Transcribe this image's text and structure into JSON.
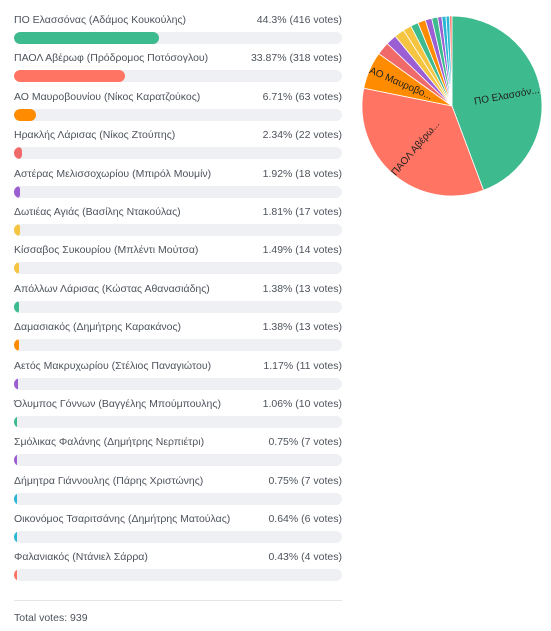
{
  "chart_data": {
    "type": "pie",
    "series": [
      {
        "name": "ΠΟ Ελασσόνας (Αδάμος Κουκούλης)",
        "percent": "44.3%",
        "votes_text": "(416 votes)",
        "value": 416,
        "color": "#3dba8e",
        "pie_label": "ΠΟ Ελασσόν..."
      },
      {
        "name": "ΠΑΟΛ Αβέρωφ (Πρόδρομος Ποτόσογλου)",
        "percent": "33.87%",
        "votes_text": "(318 votes)",
        "value": 318,
        "color": "#ff7463",
        "pie_label": "ΠΑΟΛ Αβέρω..."
      },
      {
        "name": "ΑΟ Μαυροβουνίου (Νίκος Καρατζούκος)",
        "percent": "6.71%",
        "votes_text": "(63 votes)",
        "value": 63,
        "color": "#ff8c00",
        "pie_label": "ΑΟ Μαυροβο..."
      },
      {
        "name": "Ηρακλής Λάρισας (Νίκος Ζτούπης)",
        "percent": "2.34%",
        "votes_text": "(22 votes)",
        "value": 22,
        "color": "#f06a6a",
        "pie_label": ""
      },
      {
        "name": "Αστέρας Μελισσοχωρίου (Μπιρόλ Μουμίν)",
        "percent": "1.92%",
        "votes_text": "(18 votes)",
        "value": 18,
        "color": "#9b5fd3",
        "pie_label": ""
      },
      {
        "name": "Δωτιέας Αγιάς (Βασίλης Ντακούλας)",
        "percent": "1.81%",
        "votes_text": "(17 votes)",
        "value": 17,
        "color": "#f5c542",
        "pie_label": ""
      },
      {
        "name": "Κίσσαβος Συκουρίου (Μπλέντι Μούτσα)",
        "percent": "1.49%",
        "votes_text": "(14 votes)",
        "value": 14,
        "color": "#f5c542",
        "pie_label": ""
      },
      {
        "name": "Απόλλων Λάρισας (Κώστας Αθανασιάδης)",
        "percent": "1.38%",
        "votes_text": "(13 votes)",
        "value": 13,
        "color": "#3dba8e",
        "pie_label": ""
      },
      {
        "name": "Δαμασιακός (Δημήτρης Καρακάνος)",
        "percent": "1.38%",
        "votes_text": "(13 votes)",
        "value": 13,
        "color": "#ff8c00",
        "pie_label": ""
      },
      {
        "name": "Αετός Μακρυχωρίου (Στέλιος Παναγιώτου)",
        "percent": "1.17%",
        "votes_text": "(11 votes)",
        "value": 11,
        "color": "#9b5fd3",
        "pie_label": ""
      },
      {
        "name": "Όλυμπος Γόννων (Βαγγέλης Μπούμπουλης)",
        "percent": "1.06%",
        "votes_text": "(10 votes)",
        "value": 10,
        "color": "#3dba8e",
        "pie_label": ""
      },
      {
        "name": "Σμόλικας Φαλάνης (Δημήτρης Νερπιέτρι)",
        "percent": "0.75%",
        "votes_text": "(7 votes)",
        "value": 7,
        "color": "#9b5fd3",
        "pie_label": ""
      },
      {
        "name": "Δήμητρα Γιάννουλης (Πάρης Χριστώνης)",
        "percent": "0.75%",
        "votes_text": "(7 votes)",
        "value": 7,
        "color": "#2bb7d4",
        "pie_label": ""
      },
      {
        "name": "Οικονόμος Τσαριτσάνης (Δημήτρης Ματούλας)",
        "percent": "0.64%",
        "votes_text": "(6 votes)",
        "value": 6,
        "color": "#2bb7d4",
        "pie_label": ""
      },
      {
        "name": "Φαλανιακός (Ντάνιελ Σάρρα)",
        "percent": "0.43%",
        "votes_text": "(4 votes)",
        "value": 4,
        "color": "#ff7463",
        "pie_label": ""
      }
    ],
    "total_text": "Total votes: 939"
  }
}
